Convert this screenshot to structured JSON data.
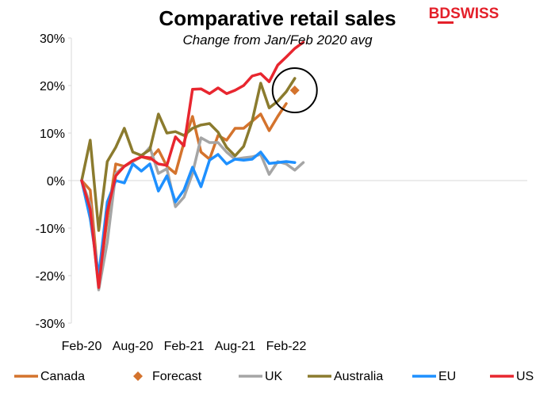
{
  "logo": {
    "text": "BDSWISS",
    "color": "#e4202a"
  },
  "chart_data": {
    "type": "line",
    "title": "Comparative retail sales",
    "subtitle": "Change from Jan/Feb 2020 avg",
    "xlabel": "",
    "ylabel": "",
    "ylim": [
      -30,
      30
    ],
    "y_ticks": [
      -30,
      -20,
      -10,
      0,
      10,
      20,
      30
    ],
    "y_tick_labels": [
      "-30%",
      "-20%",
      "-10%",
      "0%",
      "10%",
      "20%",
      "30%"
    ],
    "x": [
      "2020-02",
      "2020-03",
      "2020-04",
      "2020-05",
      "2020-06",
      "2020-07",
      "2020-08",
      "2020-09",
      "2020-10",
      "2020-11",
      "2020-12",
      "2021-01",
      "2021-02",
      "2021-03",
      "2021-04",
      "2021-05",
      "2021-06",
      "2021-07",
      "2021-08",
      "2021-09",
      "2021-10",
      "2021-11",
      "2021-12",
      "2022-01",
      "2022-02",
      "2022-03",
      "2022-04"
    ],
    "x_ticks": [
      "2020-02",
      "2020-08",
      "2021-02",
      "2021-08",
      "2022-02"
    ],
    "x_tick_labels": [
      "Feb-20",
      "Aug-20",
      "Feb-21",
      "Aug-21",
      "Feb-22"
    ],
    "grid": false,
    "legend_position": "bottom",
    "series": [
      {
        "name": "Canada",
        "color": "#d4732d",
        "kind": "line",
        "values": [
          0,
          -2,
          -22,
          -8,
          3.5,
          3,
          4,
          5,
          4.5,
          6.5,
          3,
          1.5,
          8,
          13.5,
          6,
          4.5,
          9.5,
          8.5,
          11,
          11,
          12.5,
          14,
          10.5,
          13.5,
          16.2,
          null,
          null
        ]
      },
      {
        "name": "UK",
        "color": "#a5a5a5",
        "kind": "line",
        "values": [
          0,
          -5,
          -23,
          -13,
          1.5,
          3,
          4,
          5,
          7,
          1.5,
          2.5,
          -5.5,
          -3.5,
          1.5,
          9,
          8,
          8,
          6,
          4.5,
          4.8,
          5,
          5.5,
          1.3,
          4,
          3.5,
          2.2,
          3.8
        ]
      },
      {
        "name": "Australia",
        "color": "#8b7b2e",
        "kind": "line",
        "values": [
          0,
          8.5,
          -10.5,
          4,
          7,
          11,
          6,
          5.3,
          6.5,
          14,
          10,
          10.3,
          9.5,
          11,
          11.7,
          12,
          10.2,
          7,
          5.2,
          7.2,
          12.5,
          20.5,
          15.3,
          16.7,
          18.7,
          21.5,
          null
        ]
      },
      {
        "name": "EU",
        "color": "#1e90ff",
        "kind": "line",
        "values": [
          0,
          -8,
          -20,
          -4.5,
          0,
          -0.5,
          3.5,
          2,
          3.5,
          -2.2,
          1,
          -4.5,
          -2,
          2.8,
          -1.3,
          4.3,
          5.5,
          3.5,
          4.5,
          4.3,
          4.5,
          6,
          3.6,
          3.8,
          4,
          3.8,
          null
        ]
      },
      {
        "name": "US",
        "color": "#e8262f",
        "kind": "line",
        "values": [
          0,
          -6,
          -22.5,
          -6.5,
          1,
          3,
          4.2,
          5,
          4.8,
          3.5,
          3.2,
          9.2,
          7.3,
          19.2,
          19.3,
          18.3,
          19.5,
          18.3,
          19,
          20,
          22,
          22.5,
          20.8,
          24.3,
          26,
          27.8,
          29.1
        ]
      },
      {
        "name": "Forecast",
        "color": "#d4732d",
        "kind": "marker",
        "marker": "diamond",
        "points": [
          {
            "x": "2022-03",
            "value": 19
          }
        ]
      }
    ],
    "annotations": [
      {
        "type": "circle",
        "color": "#000000",
        "x": "2022-03",
        "value": 19
      }
    ]
  }
}
